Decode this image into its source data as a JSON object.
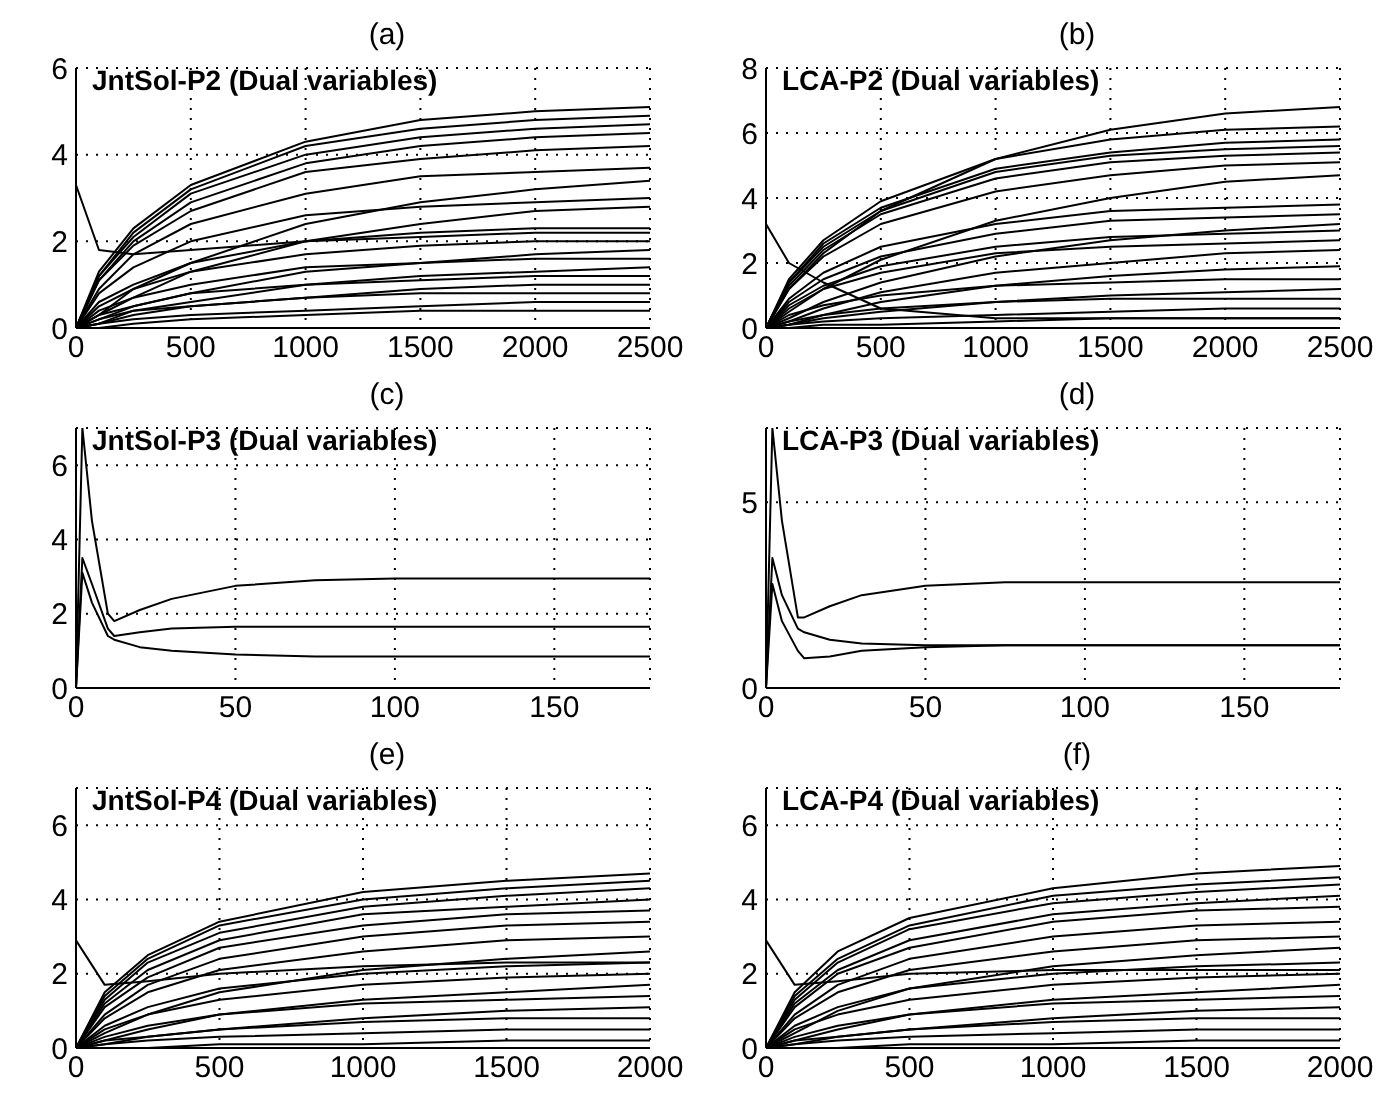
{
  "chart_data": [
    {
      "type": "line",
      "title": "(a)",
      "annotations": [
        "JntSol-P2 (Dual variables)"
      ],
      "color": "#000000",
      "grid": true,
      "marker": "none",
      "line_style": "solid",
      "xlim": [
        0,
        2500
      ],
      "xticks": [
        0,
        500,
        1000,
        1500,
        2000,
        2500
      ],
      "ylim": [
        0,
        6
      ],
      "yticks": [
        0,
        2,
        4,
        6
      ],
      "x": [
        0,
        100,
        250,
        500,
        1000,
        1500,
        2000,
        2500
      ],
      "series": [
        {
          "values": [
            0,
            1.3,
            2.3,
            3.3,
            4.3,
            4.8,
            5.0,
            5.1
          ]
        },
        {
          "values": [
            0,
            1.2,
            2.2,
            3.2,
            4.2,
            4.6,
            4.8,
            4.9
          ]
        },
        {
          "values": [
            0,
            1.2,
            2.1,
            3.1,
            4.0,
            4.4,
            4.6,
            4.7
          ]
        },
        {
          "values": [
            0,
            1.1,
            2.0,
            2.9,
            3.8,
            4.2,
            4.4,
            4.5
          ]
        },
        {
          "values": [
            0,
            1.1,
            1.9,
            2.7,
            3.6,
            3.9,
            4.1,
            4.2
          ]
        },
        {
          "values": [
            0,
            0.9,
            1.7,
            2.4,
            3.1,
            3.5,
            3.6,
            3.7
          ]
        },
        {
          "values": [
            0,
            0.3,
            0.9,
            1.5,
            2.4,
            2.9,
            3.2,
            3.4
          ]
        },
        {
          "values": [
            0,
            0.8,
            1.4,
            2.0,
            2.6,
            2.8,
            2.9,
            3.0
          ]
        },
        {
          "values": [
            0,
            0.3,
            0.7,
            1.3,
            2.0,
            2.4,
            2.7,
            2.8
          ]
        },
        {
          "values": [
            0,
            0.6,
            1.0,
            1.5,
            2.0,
            2.2,
            2.3,
            2.3
          ]
        },
        {
          "values": [
            0,
            0.5,
            0.9,
            1.3,
            1.7,
            1.9,
            2.0,
            2.0
          ]
        },
        {
          "values": [
            0,
            0.2,
            0.5,
            0.8,
            1.3,
            1.5,
            1.7,
            1.8
          ]
        },
        {
          "values": [
            0,
            0.4,
            0.7,
            1.0,
            1.4,
            1.5,
            1.6,
            1.6
          ]
        },
        {
          "values": [
            0,
            0.1,
            0.4,
            0.6,
            1.0,
            1.2,
            1.3,
            1.4
          ]
        },
        {
          "values": [
            0,
            0.3,
            0.5,
            0.8,
            1.0,
            1.1,
            1.2,
            1.2
          ]
        },
        {
          "values": [
            0,
            0.1,
            0.3,
            0.5,
            0.7,
            0.9,
            1.0,
            1.0
          ]
        },
        {
          "values": [
            0,
            0.2,
            0.4,
            0.5,
            0.7,
            0.8,
            0.8,
            0.8
          ]
        },
        {
          "values": [
            0,
            0.1,
            0.2,
            0.3,
            0.4,
            0.5,
            0.6,
            0.6
          ]
        },
        {
          "values": [
            0,
            0,
            0.1,
            0.2,
            0.3,
            0.4,
            0.4,
            0.4
          ]
        },
        {
          "values": [
            3.3,
            1.8,
            1.7,
            1.8,
            2.0,
            2.1,
            2.2,
            2.2
          ]
        }
      ]
    },
    {
      "type": "line",
      "title": "(b)",
      "annotations": [
        "LCA-P2 (Dual variables)"
      ],
      "color": "#000000",
      "grid": true,
      "marker": "none",
      "line_style": "solid",
      "xlim": [
        0,
        2500
      ],
      "xticks": [
        0,
        500,
        1000,
        1500,
        2000,
        2500
      ],
      "ylim": [
        0,
        8
      ],
      "yticks": [
        0,
        2,
        4,
        6,
        8
      ],
      "x": [
        0,
        100,
        250,
        500,
        1000,
        1500,
        2000,
        2500
      ],
      "series": [
        {
          "values": [
            0,
            1.2,
            2.3,
            3.6,
            5.2,
            6.1,
            6.6,
            6.8
          ]
        },
        {
          "values": [
            0,
            1.5,
            2.7,
            3.9,
            5.2,
            5.8,
            6.1,
            6.2
          ]
        },
        {
          "values": [
            0,
            1.4,
            2.6,
            3.7,
            4.9,
            5.4,
            5.7,
            5.8
          ]
        },
        {
          "values": [
            0,
            1.4,
            2.5,
            3.6,
            4.8,
            5.3,
            5.5,
            5.6
          ]
        },
        {
          "values": [
            0,
            1.3,
            2.4,
            3.5,
            4.6,
            5.1,
            5.3,
            5.4
          ]
        },
        {
          "values": [
            0,
            1.2,
            2.2,
            3.2,
            4.2,
            4.7,
            5.0,
            5.1
          ]
        },
        {
          "values": [
            0,
            0.5,
            1.2,
            2.1,
            3.3,
            4.0,
            4.5,
            4.7
          ]
        },
        {
          "values": [
            0,
            0.9,
            1.7,
            2.5,
            3.2,
            3.6,
            3.7,
            3.8
          ]
        },
        {
          "values": [
            0,
            0.8,
            1.5,
            2.2,
            2.9,
            3.3,
            3.4,
            3.5
          ]
        },
        {
          "values": [
            0,
            0.3,
            0.8,
            1.4,
            2.2,
            2.7,
            3.0,
            3.2
          ]
        },
        {
          "values": [
            0,
            0.7,
            1.3,
            1.9,
            2.5,
            2.8,
            2.9,
            3.0
          ]
        },
        {
          "values": [
            0,
            0.6,
            1.2,
            1.7,
            2.3,
            2.5,
            2.6,
            2.7
          ]
        },
        {
          "values": [
            0,
            0.2,
            0.6,
            1.1,
            1.7,
            2.0,
            2.3,
            2.4
          ]
        },
        {
          "values": [
            0,
            0.1,
            0.4,
            0.8,
            1.3,
            1.6,
            1.8,
            1.9
          ]
        },
        {
          "values": [
            0,
            0.4,
            0.7,
            1.0,
            1.3,
            1.4,
            1.5,
            1.5
          ]
        },
        {
          "values": [
            0,
            0.1,
            0.3,
            0.5,
            0.8,
            1.0,
            1.1,
            1.2
          ]
        },
        {
          "values": [
            0,
            0.2,
            0.4,
            0.6,
            0.8,
            0.9,
            0.9,
            0.9
          ]
        },
        {
          "values": [
            0,
            0.1,
            0.2,
            0.3,
            0.4,
            0.5,
            0.6,
            0.6
          ]
        },
        {
          "values": [
            0,
            0,
            0.1,
            0.1,
            0.2,
            0.3,
            0.3,
            0.3
          ]
        },
        {
          "values": [
            3.2,
            2.0,
            1.4,
            0.6,
            0.3,
            0.3,
            0.3,
            0.3
          ]
        }
      ]
    },
    {
      "type": "line",
      "title": "(c)",
      "annotations": [
        "JntSol-P3 (Dual variables)"
      ],
      "color": "#000000",
      "grid": true,
      "marker": "none",
      "line_style": "solid",
      "xlim": [
        0,
        180
      ],
      "xticks": [
        0,
        50,
        100,
        150
      ],
      "ylim": [
        0,
        7
      ],
      "yticks": [
        0,
        2,
        4,
        6
      ],
      "x": [
        0,
        2,
        5,
        10,
        12,
        20,
        30,
        50,
        75,
        100,
        150,
        180
      ],
      "series": [
        {
          "values": [
            0,
            7,
            4.5,
            2.0,
            1.8,
            2.1,
            2.4,
            2.75,
            2.9,
            2.95,
            2.95,
            2.95
          ]
        },
        {
          "values": [
            0,
            3.5,
            2.8,
            1.6,
            1.4,
            1.5,
            1.6,
            1.65,
            1.65,
            1.65,
            1.65,
            1.65
          ]
        },
        {
          "values": [
            0,
            3.1,
            2.3,
            1.4,
            1.3,
            1.1,
            1.0,
            0.9,
            0.85,
            0.85,
            0.85,
            0.85
          ]
        }
      ]
    },
    {
      "type": "line",
      "title": "(d)",
      "annotations": [
        "LCA-P3 (Dual variables)"
      ],
      "color": "#000000",
      "grid": true,
      "marker": "none",
      "line_style": "solid",
      "xlim": [
        0,
        180
      ],
      "xticks": [
        0,
        50,
        100,
        150
      ],
      "ylim": [
        0,
        7
      ],
      "yticks": [
        0,
        5
      ],
      "x": [
        0,
        2,
        5,
        10,
        12,
        20,
        30,
        50,
        75,
        100,
        150,
        180
      ],
      "series": [
        {
          "values": [
            0,
            7,
            4.5,
            1.9,
            1.9,
            2.2,
            2.5,
            2.75,
            2.85,
            2.85,
            2.85,
            2.85
          ]
        },
        {
          "values": [
            0,
            3.5,
            2.5,
            1.6,
            1.5,
            1.3,
            1.2,
            1.15,
            1.15,
            1.15,
            1.15,
            1.15
          ]
        },
        {
          "values": [
            0,
            2.8,
            1.8,
            1.0,
            0.8,
            0.85,
            1.0,
            1.1,
            1.15,
            1.15,
            1.15,
            1.15
          ]
        }
      ]
    },
    {
      "type": "line",
      "title": "(e)",
      "annotations": [
        "JntSol-P4 (Dual variables)"
      ],
      "color": "#000000",
      "grid": true,
      "marker": "none",
      "line_style": "solid",
      "xlim": [
        0,
        2000
      ],
      "xticks": [
        0,
        500,
        1000,
        1500,
        2000
      ],
      "ylim": [
        0,
        7
      ],
      "yticks": [
        0,
        2,
        4,
        6
      ],
      "x": [
        0,
        100,
        250,
        500,
        1000,
        1500,
        2000
      ],
      "series": [
        {
          "values": [
            0,
            1.5,
            2.5,
            3.4,
            4.2,
            4.5,
            4.7
          ]
        },
        {
          "values": [
            0,
            1.4,
            2.4,
            3.3,
            4.0,
            4.3,
            4.5
          ]
        },
        {
          "values": [
            0,
            1.3,
            2.3,
            3.1,
            3.8,
            4.1,
            4.3
          ]
        },
        {
          "values": [
            0,
            1.2,
            2.1,
            2.9,
            3.6,
            3.8,
            4.0
          ]
        },
        {
          "values": [
            0,
            1.1,
            1.9,
            2.7,
            3.3,
            3.6,
            3.7
          ]
        },
        {
          "values": [
            0,
            0.9,
            1.7,
            2.4,
            3.0,
            3.3,
            3.4
          ]
        },
        {
          "values": [
            0,
            0.8,
            1.5,
            2.1,
            2.6,
            2.9,
            3.0
          ]
        },
        {
          "values": [
            0,
            0.4,
            0.9,
            1.5,
            2.1,
            2.4,
            2.6
          ]
        },
        {
          "values": [
            0,
            0.6,
            1.1,
            1.6,
            2.0,
            2.2,
            2.3
          ]
        },
        {
          "values": [
            0,
            0.5,
            0.9,
            1.3,
            1.7,
            1.9,
            2.0
          ]
        },
        {
          "values": [
            0,
            0.2,
            0.5,
            0.9,
            1.3,
            1.5,
            1.7
          ]
        },
        {
          "values": [
            0,
            0.3,
            0.6,
            0.9,
            1.2,
            1.3,
            1.4
          ]
        },
        {
          "values": [
            0,
            0.1,
            0.3,
            0.5,
            0.8,
            1.0,
            1.1
          ]
        },
        {
          "values": [
            0,
            0.2,
            0.3,
            0.5,
            0.7,
            0.8,
            0.8
          ]
        },
        {
          "values": [
            0,
            0.1,
            0.2,
            0.3,
            0.4,
            0.5,
            0.5
          ]
        },
        {
          "values": [
            0,
            0,
            0,
            0.1,
            0.1,
            0.2,
            0.2
          ]
        },
        {
          "values": [
            2.9,
            1.7,
            1.8,
            2.0,
            2.2,
            2.3,
            2.3
          ]
        }
      ]
    },
    {
      "type": "line",
      "title": "(f)",
      "annotations": [
        "LCA-P4 (Dual variables)"
      ],
      "color": "#000000",
      "grid": true,
      "marker": "none",
      "line_style": "solid",
      "xlim": [
        0,
        2000
      ],
      "xticks": [
        0,
        500,
        1000,
        1500,
        2000
      ],
      "ylim": [
        0,
        7
      ],
      "yticks": [
        0,
        2,
        4,
        6
      ],
      "x": [
        0,
        100,
        250,
        500,
        1000,
        1500,
        2000
      ],
      "series": [
        {
          "values": [
            0,
            1.5,
            2.6,
            3.5,
            4.3,
            4.7,
            4.9
          ]
        },
        {
          "values": [
            0,
            1.4,
            2.4,
            3.3,
            4.1,
            4.4,
            4.6
          ]
        },
        {
          "values": [
            0,
            1.3,
            2.3,
            3.2,
            3.9,
            4.2,
            4.4
          ]
        },
        {
          "values": [
            0,
            1.2,
            2.1,
            2.9,
            3.6,
            3.9,
            4.1
          ]
        },
        {
          "values": [
            0,
            1.1,
            2.0,
            2.7,
            3.4,
            3.7,
            3.8
          ]
        },
        {
          "values": [
            0,
            0.9,
            1.7,
            2.4,
            3.0,
            3.3,
            3.4
          ]
        },
        {
          "values": [
            0,
            0.8,
            1.5,
            2.1,
            2.6,
            2.9,
            3.0
          ]
        },
        {
          "values": [
            0,
            0.4,
            1.0,
            1.6,
            2.2,
            2.5,
            2.7
          ]
        },
        {
          "values": [
            0,
            0.6,
            1.1,
            1.6,
            2.0,
            2.2,
            2.3
          ]
        },
        {
          "values": [
            0,
            0.5,
            0.9,
            1.3,
            1.7,
            1.9,
            2.0
          ]
        },
        {
          "values": [
            0,
            0.2,
            0.5,
            0.9,
            1.3,
            1.5,
            1.7
          ]
        },
        {
          "values": [
            0,
            0.3,
            0.6,
            0.9,
            1.2,
            1.3,
            1.4
          ]
        },
        {
          "values": [
            0,
            0.1,
            0.3,
            0.5,
            0.8,
            1.0,
            1.1
          ]
        },
        {
          "values": [
            0,
            0.2,
            0.3,
            0.5,
            0.7,
            0.8,
            0.8
          ]
        },
        {
          "values": [
            0,
            0.1,
            0.2,
            0.3,
            0.4,
            0.5,
            0.5
          ]
        },
        {
          "values": [
            0,
            0,
            0,
            0.1,
            0.1,
            0.2,
            0.2
          ]
        },
        {
          "values": [
            2.9,
            1.7,
            1.8,
            2.0,
            2.1,
            2.1,
            2.1
          ]
        }
      ]
    }
  ]
}
